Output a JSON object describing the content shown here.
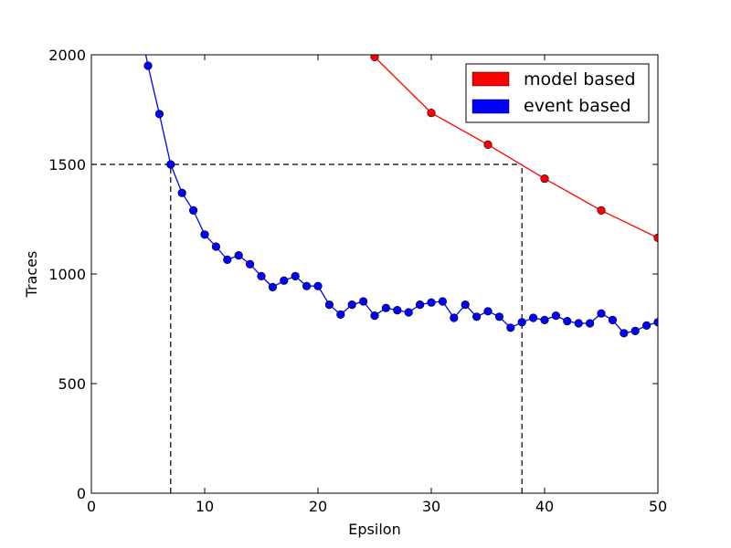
{
  "chart_data": {
    "type": "line",
    "xlabel": "Epsilon",
    "ylabel": "Traces",
    "xlim": [
      0,
      50
    ],
    "ylim": [
      0,
      2000
    ],
    "x_ticks": [
      0,
      10,
      20,
      30,
      40,
      50
    ],
    "y_ticks": [
      0,
      500,
      1000,
      1500,
      2000
    ],
    "grid": false,
    "legend_position": "top-right",
    "series": [
      {
        "name": "model based",
        "color": "#ff0000",
        "x": [
          25,
          30,
          35,
          40,
          45,
          50
        ],
        "y": [
          1990,
          1735,
          1590,
          1435,
          1290,
          1165
        ],
        "clip_start": {
          "x": 24.8,
          "y": 2000
        }
      },
      {
        "name": "event based",
        "color": "#0000ff",
        "x": [
          5,
          6,
          7,
          8,
          9,
          10,
          11,
          12,
          13,
          14,
          15,
          16,
          17,
          18,
          19,
          20,
          21,
          22,
          23,
          24,
          25,
          26,
          27,
          28,
          29,
          30,
          31,
          32,
          33,
          34,
          35,
          36,
          37,
          38,
          39,
          40,
          41,
          42,
          43,
          44,
          45,
          46,
          47,
          48,
          49,
          50
        ],
        "y": [
          1950,
          1730,
          1500,
          1370,
          1290,
          1180,
          1125,
          1065,
          1085,
          1045,
          990,
          940,
          970,
          990,
          945,
          945,
          860,
          815,
          860,
          875,
          810,
          845,
          835,
          825,
          860,
          870,
          875,
          800,
          860,
          805,
          830,
          805,
          755,
          780,
          800,
          790,
          810,
          785,
          775,
          775,
          820,
          790,
          730,
          740,
          765,
          780
        ],
        "clip_start": {
          "x": 4.8,
          "y": 2000
        }
      }
    ],
    "reference_lines": [
      {
        "style": "dashed",
        "color": "#000000",
        "points": [
          [
            0,
            1500
          ],
          [
            38,
            1500
          ]
        ]
      },
      {
        "style": "dashed",
        "color": "#000000",
        "points": [
          [
            7,
            0
          ],
          [
            7,
            1500
          ]
        ]
      },
      {
        "style": "dashed",
        "color": "#000000",
        "points": [
          [
            38,
            0
          ],
          [
            38,
            1500
          ]
        ]
      }
    ]
  }
}
